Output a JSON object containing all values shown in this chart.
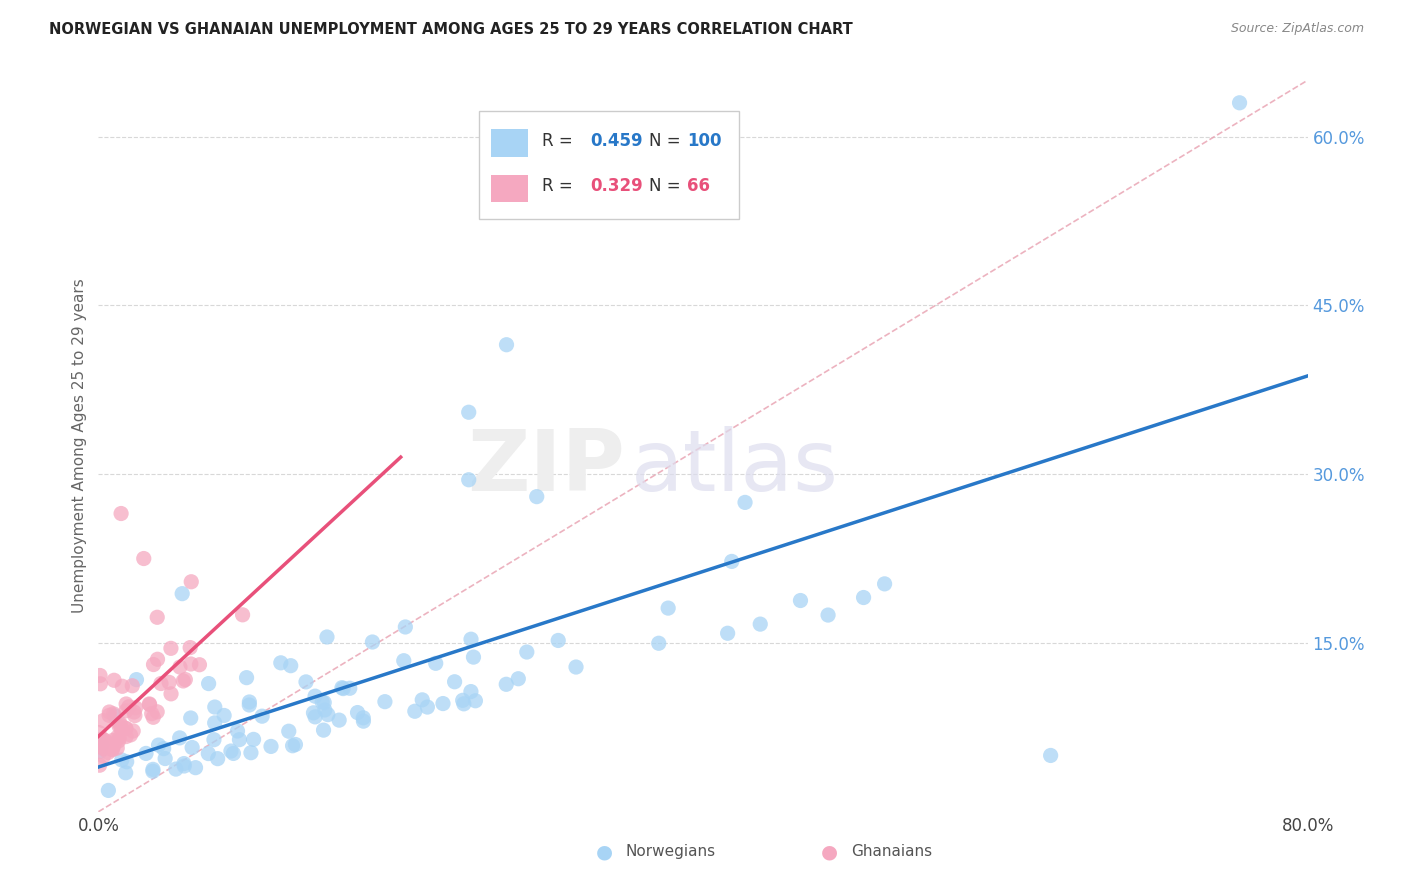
{
  "title": "NORWEGIAN VS GHANAIAN UNEMPLOYMENT AMONG AGES 25 TO 29 YEARS CORRELATION CHART",
  "source": "Source: ZipAtlas.com",
  "ylabel": "Unemployment Among Ages 25 to 29 years",
  "xlim": [
    0.0,
    0.8
  ],
  "ylim": [
    0.0,
    0.65
  ],
  "norwegian_R": 0.459,
  "norwegian_N": 100,
  "ghanaian_R": 0.329,
  "ghanaian_N": 66,
  "norwegian_color": "#a8d4f5",
  "ghanaian_color": "#f5a8c0",
  "norwegian_line_color": "#2878c8",
  "ghanaian_line_color": "#e8507a",
  "diagonal_color": "#e8a0b0",
  "grid_color": "#d8d8d8",
  "ytick_color": "#5599dd",
  "legend_norwegian_label": "Norwegians",
  "legend_ghanaian_label": "Ghanaians"
}
